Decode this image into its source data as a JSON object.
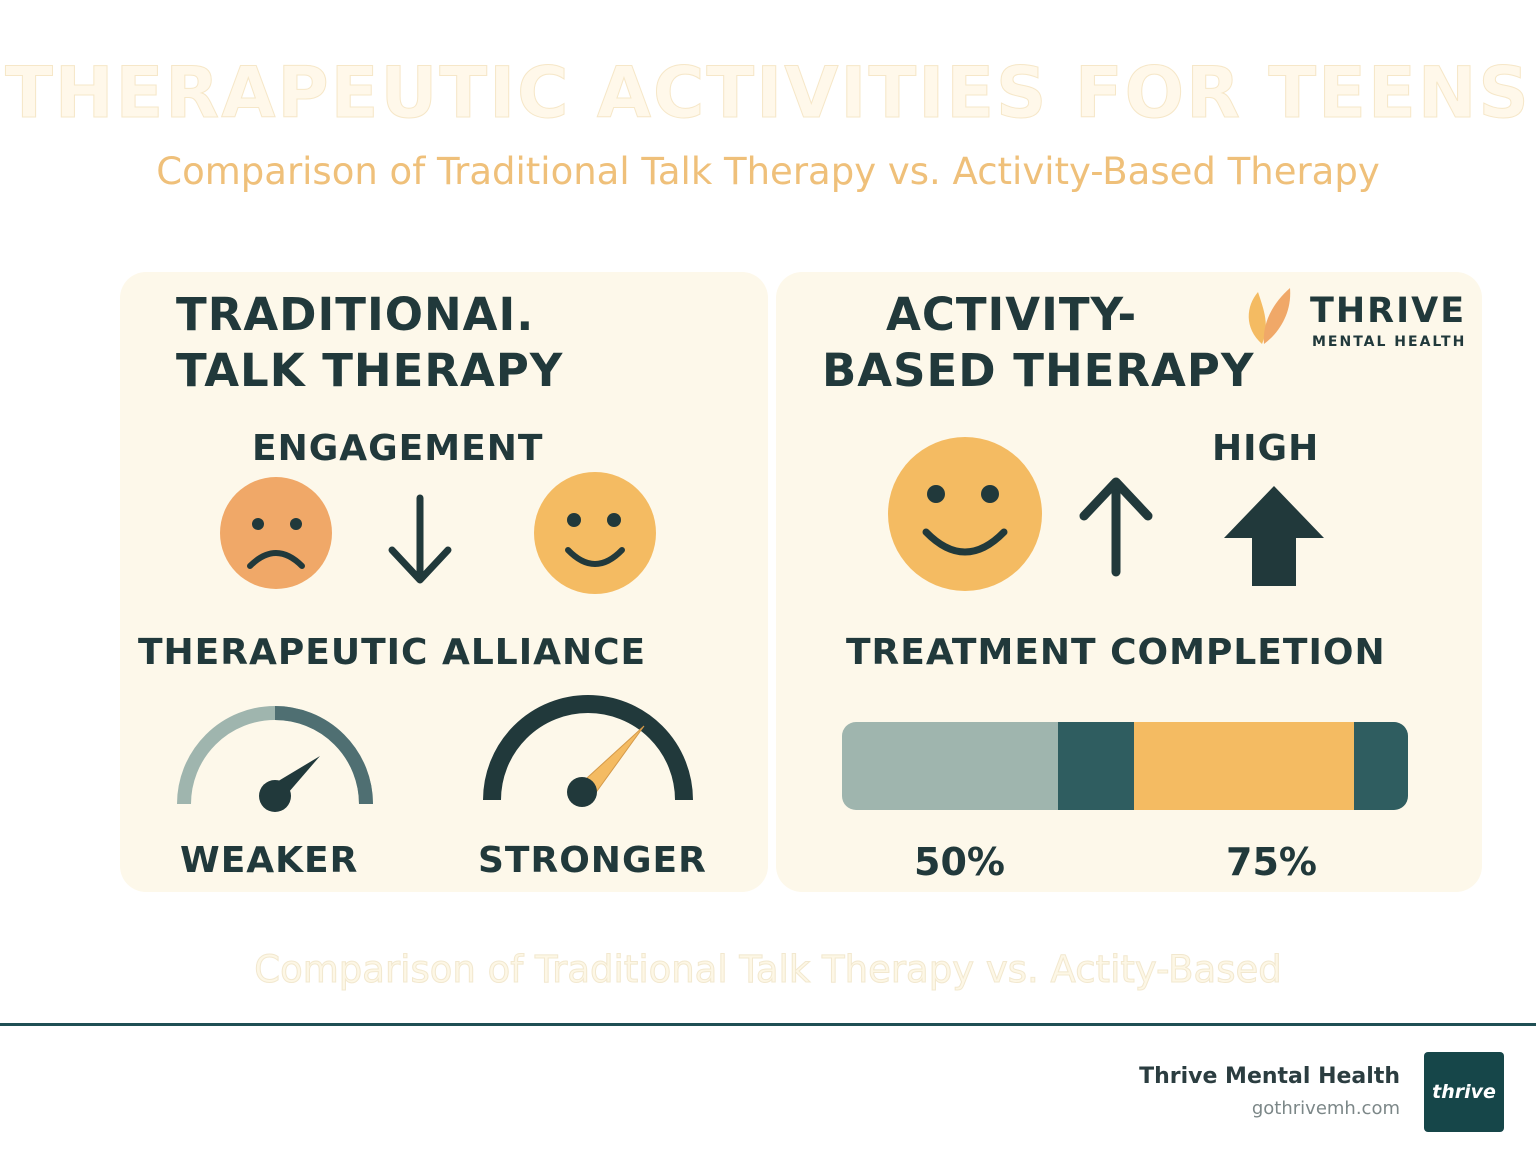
{
  "header": {
    "title": "THERAPEUTIC ACTIVITIES FOR TEENS",
    "subtitle": "Comparison of Traditional Talk Therapy vs. Activity-Based Therapy"
  },
  "left_panel": {
    "heading_line1": "TRADITIONAI.",
    "heading_line2": "TALK THERAPY",
    "engagement_label": "ENGAGEMENT",
    "alliance_label": "THERAPEUTIC ALLIANCE",
    "gauge_weaker_label": "WEAKER",
    "gauge_stronger_label": "STRONGER"
  },
  "right_panel": {
    "heading_line1": "ACTIVITY-",
    "heading_line2": "BASED THERAPY",
    "high_label": "HIGH",
    "completion_label": "TREATMENT COMPLETION",
    "traditional_completion_pct": "50%",
    "activity_completion_pct": "75%",
    "logo_name": "THRIVE",
    "logo_tagline": "MENTAL HEALTH"
  },
  "caption": "Comparison of Traditional Talk Therapy vs. Actity-Based",
  "footer": {
    "brand_name": "Thrive Mental Health",
    "brand_url": "gothrivemh.com",
    "badge_text": "thrive"
  },
  "colors": {
    "dark": "#21393b",
    "orange": "#f0a868",
    "yellow": "#f4bb62",
    "sage": "#9fb5ae",
    "teal": "#2f5d60",
    "panel": "#fdf8ea"
  },
  "icons": [
    "sad-face-icon",
    "down-arrow-icon",
    "happy-face-icon",
    "up-arrow-icon",
    "bold-up-arrow-icon",
    "gauge-weak-icon",
    "gauge-strong-icon",
    "leaf-logo-icon"
  ]
}
